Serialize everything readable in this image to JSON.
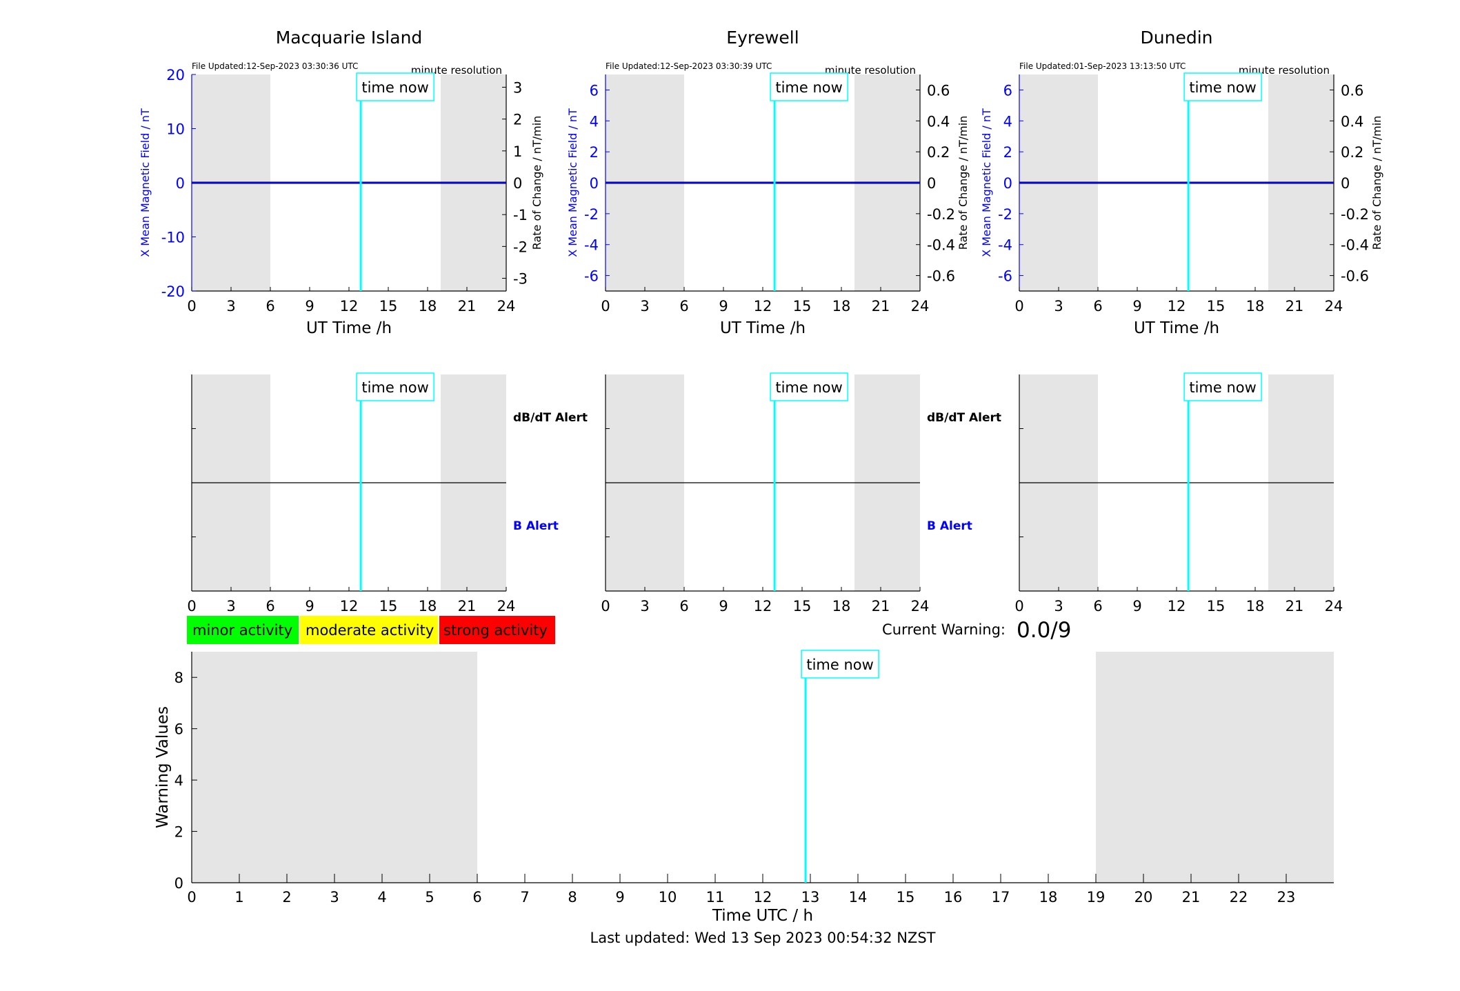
{
  "footer": {
    "last_updated": "Last updated: Wed 13 Sep 2023 00:54:32 NZST"
  },
  "legend": {
    "minor": "minor activity",
    "moderate": "moderate activity",
    "strong": "strong activity",
    "colors": {
      "minor": "#00ff00",
      "moderate": "#ffff00",
      "strong": "#ff0000"
    }
  },
  "current_warning": {
    "label": "Current Warning:",
    "value": "0.0/9"
  },
  "alert_labels": {
    "dbdt": "dB/dT Alert",
    "b": "B Alert"
  },
  "colors": {
    "field": "#0000ff",
    "time_now": "#00ffff",
    "shade": "#e5e5e5"
  },
  "chart_data": [
    {
      "type": "line",
      "title": "Macquarie Island",
      "file_updated": "File Updated:12-Sep-2023 03:30:36 UTC",
      "resolution": "minute resolution",
      "xlabel": "UT Time /h",
      "ylabel": "X Mean Magnetic Field / nT",
      "y2label": "Rate of Change / nT/min",
      "xlim": [
        0,
        24
      ],
      "ylim": [
        -20,
        20
      ],
      "y2lim": [
        -3.4,
        3.4
      ],
      "xticks": [
        0,
        3,
        6,
        9,
        12,
        15,
        18,
        21,
        24
      ],
      "yticks": [
        -20,
        -10,
        0,
        10,
        20
      ],
      "y2ticks": [
        -3,
        -2,
        -1,
        0,
        1,
        2,
        3
      ],
      "shaded": [
        [
          0,
          6
        ],
        [
          19,
          24
        ]
      ],
      "time_now": 12.9,
      "time_now_label": "time now",
      "series": [
        {
          "x": [
            0,
            24
          ],
          "y": [
            0,
            0
          ]
        }
      ]
    },
    {
      "type": "line",
      "title": "Eyrewell",
      "file_updated": "File Updated:12-Sep-2023 03:30:39 UTC",
      "resolution": "minute resolution",
      "xlabel": "UT Time /h",
      "ylabel": "X Mean Magnetic Field / nT",
      "y2label": "Rate of Change / nT/min",
      "xlim": [
        0,
        24
      ],
      "ylim": [
        -7,
        7
      ],
      "y2lim": [
        -0.7,
        0.7
      ],
      "xticks": [
        0,
        3,
        6,
        9,
        12,
        15,
        18,
        21,
        24
      ],
      "yticks": [
        -6,
        -4,
        -2,
        0,
        2,
        4,
        6
      ],
      "y2ticks": [
        -0.6,
        -0.4,
        -0.2,
        0,
        0.2,
        0.4,
        0.6
      ],
      "shaded": [
        [
          0,
          6
        ],
        [
          19,
          24
        ]
      ],
      "time_now": 12.9,
      "time_now_label": "time now",
      "series": [
        {
          "x": [
            0,
            24
          ],
          "y": [
            0,
            0
          ]
        }
      ]
    },
    {
      "type": "line",
      "title": "Dunedin",
      "file_updated": "File Updated:01-Sep-2023 13:13:50 UTC",
      "resolution": "minute resolution",
      "xlabel": "UT Time /h",
      "ylabel": "X Mean Magnetic Field / nT",
      "y2label": "Rate of Change / nT/min",
      "xlim": [
        0,
        24
      ],
      "ylim": [
        -7,
        7
      ],
      "y2lim": [
        -0.7,
        0.7
      ],
      "xticks": [
        0,
        3,
        6,
        9,
        12,
        15,
        18,
        21,
        24
      ],
      "yticks": [
        -6,
        -4,
        -2,
        0,
        2,
        4,
        6
      ],
      "y2ticks": [
        -0.6,
        -0.4,
        -0.2,
        0,
        0.2,
        0.4,
        0.6
      ],
      "shaded": [
        [
          0,
          6
        ],
        [
          19,
          24
        ]
      ],
      "time_now": 12.9,
      "time_now_label": "time now",
      "series": [
        {
          "x": [
            0,
            24
          ],
          "y": [
            0,
            0
          ]
        }
      ]
    },
    {
      "type": "line",
      "title": "",
      "xlim": [
        0,
        24
      ],
      "xticks": [
        0,
        3,
        6,
        9,
        12,
        15,
        18,
        21,
        24
      ],
      "shaded": [
        [
          0,
          6
        ],
        [
          19,
          24
        ]
      ],
      "time_now": 12.9,
      "time_now_label": "time now",
      "midline": 0.5
    },
    {
      "type": "line",
      "title": "",
      "xlim": [
        0,
        24
      ],
      "xticks": [
        0,
        3,
        6,
        9,
        12,
        15,
        18,
        21,
        24
      ],
      "shaded": [
        [
          0,
          6
        ],
        [
          19,
          24
        ]
      ],
      "time_now": 12.9,
      "time_now_label": "time now",
      "midline": 0.5
    },
    {
      "type": "line",
      "title": "",
      "xlim": [
        0,
        24
      ],
      "xticks": [
        0,
        3,
        6,
        9,
        12,
        15,
        18,
        21,
        24
      ],
      "shaded": [
        [
          0,
          6
        ],
        [
          19,
          24
        ]
      ],
      "time_now": 12.9,
      "time_now_label": "time now",
      "midline": 0.5
    },
    {
      "type": "bar",
      "title": "",
      "xlabel": "Time UTC / h",
      "ylabel": "Warning Values",
      "xlim": [
        0,
        24
      ],
      "ylim": [
        0,
        9
      ],
      "xticks": [
        0,
        1,
        2,
        3,
        4,
        5,
        6,
        7,
        8,
        9,
        10,
        11,
        12,
        13,
        14,
        15,
        16,
        17,
        18,
        19,
        20,
        21,
        22,
        23
      ],
      "yticks": [
        0,
        2,
        4,
        6,
        8
      ],
      "shaded": [
        [
          0,
          6
        ],
        [
          19,
          24
        ]
      ],
      "time_now": 12.9,
      "time_now_label": "time now",
      "values": []
    }
  ]
}
